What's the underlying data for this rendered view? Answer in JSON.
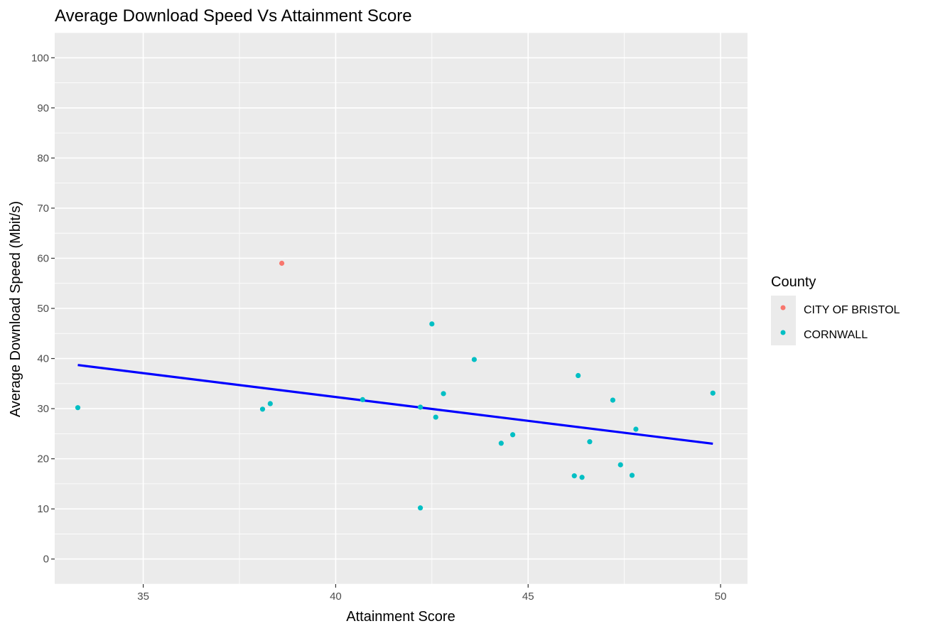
{
  "chart_data": {
    "type": "scatter",
    "title": "Average Download Speed Vs Attainment Score",
    "xlabel": "Attainment Score",
    "ylabel": "Average Download Speed (Mbit/s)",
    "xlim": [
      32.7,
      50.7
    ],
    "ylim": [
      -5,
      105
    ],
    "x_ticks": [
      35,
      40,
      45,
      50
    ],
    "y_ticks": [
      0,
      10,
      20,
      30,
      40,
      50,
      60,
      70,
      80,
      90,
      100
    ],
    "x_tick_labels": [
      "35",
      "40",
      "45",
      "50"
    ],
    "y_tick_labels": [
      "0",
      "10",
      "20",
      "30",
      "40",
      "50",
      "60",
      "70",
      "80",
      "90",
      "100"
    ],
    "grid": true,
    "legend": {
      "title": "County",
      "position": "right",
      "entries": [
        {
          "label": "CITY OF BRISTOL",
          "color": "#F8766D"
        },
        {
          "label": "CORNWALL",
          "color": "#00BFC4"
        }
      ]
    },
    "series": [
      {
        "name": "CITY OF BRISTOL",
        "color": "#F8766D",
        "points": [
          [
            38.6,
            59.0
          ]
        ]
      },
      {
        "name": "CORNWALL",
        "color": "#00BFC4",
        "points": [
          [
            33.3,
            30.2
          ],
          [
            38.1,
            29.9
          ],
          [
            38.3,
            31.0
          ],
          [
            40.7,
            31.8
          ],
          [
            42.2,
            30.3
          ],
          [
            42.2,
            10.2
          ],
          [
            42.5,
            46.9
          ],
          [
            42.6,
            28.3
          ],
          [
            42.8,
            33.0
          ],
          [
            43.6,
            39.8
          ],
          [
            44.3,
            23.1
          ],
          [
            44.6,
            24.8
          ],
          [
            46.2,
            16.6
          ],
          [
            46.3,
            36.6
          ],
          [
            46.4,
            16.3
          ],
          [
            46.6,
            23.4
          ],
          [
            47.2,
            31.7
          ],
          [
            47.4,
            18.8
          ],
          [
            47.7,
            16.7
          ],
          [
            47.8,
            25.9
          ],
          [
            49.8,
            33.1
          ]
        ]
      }
    ],
    "trend_line": {
      "color": "#0000FF",
      "points": [
        [
          33.3,
          38.7
        ],
        [
          49.8,
          23.0
        ]
      ]
    }
  }
}
